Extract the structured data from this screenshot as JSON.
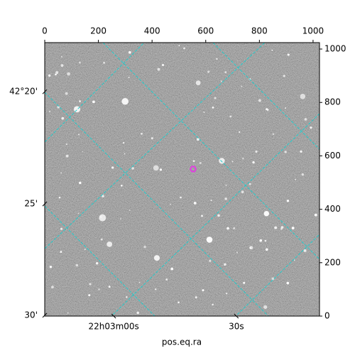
{
  "chart_data": {
    "type": "image",
    "xlabel": "pos.eq.ra",
    "xlim": [
      0,
      1024
    ],
    "xticks": [
      0,
      200,
      400,
      600,
      800,
      1000
    ],
    "ylim": [
      0,
      1024
    ],
    "yticks": [
      0,
      200,
      400,
      600,
      800,
      1000
    ],
    "bottom_ticks": [
      {
        "value": 257,
        "label": "22h03m00s"
      },
      {
        "value": 714,
        "label": "30s"
      }
    ],
    "left_ticks": [
      {
        "value": 840,
        "label": "42°20'"
      },
      {
        "value": 420,
        "label": "25'"
      },
      {
        "value": 3,
        "label": "30'"
      }
    ],
    "grid": true,
    "grid_color": "#22cccc"
  }
}
